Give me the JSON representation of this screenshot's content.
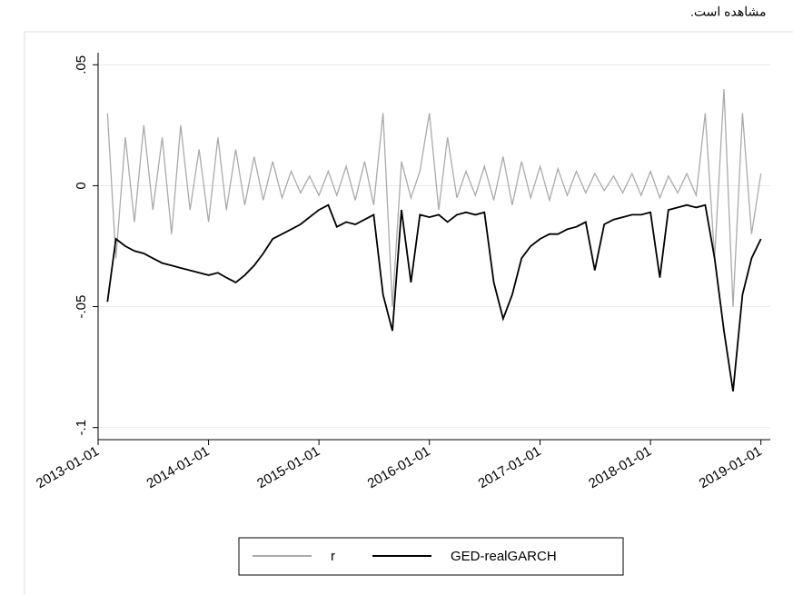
{
  "page_text": "مشاهده است.",
  "chart_data": {
    "type": "line",
    "x": [
      "2013-02-01",
      "2013-03-01",
      "2013-04-01",
      "2013-05-01",
      "2013-06-01",
      "2013-07-01",
      "2013-08-01",
      "2013-09-01",
      "2013-10-01",
      "2013-11-01",
      "2013-12-01",
      "2014-01-01",
      "2014-02-01",
      "2014-03-01",
      "2014-04-01",
      "2014-05-01",
      "2014-06-01",
      "2014-07-01",
      "2014-08-01",
      "2014-09-01",
      "2014-10-01",
      "2014-11-01",
      "2014-12-01",
      "2015-01-01",
      "2015-02-01",
      "2015-03-01",
      "2015-04-01",
      "2015-05-01",
      "2015-06-01",
      "2015-07-01",
      "2015-08-01",
      "2015-09-01",
      "2015-10-01",
      "2015-11-01",
      "2015-12-01",
      "2016-01-01",
      "2016-02-01",
      "2016-03-01",
      "2016-04-01",
      "2016-05-01",
      "2016-06-01",
      "2016-07-01",
      "2016-08-01",
      "2016-09-01",
      "2016-10-01",
      "2016-11-01",
      "2016-12-01",
      "2017-01-01",
      "2017-02-01",
      "2017-03-01",
      "2017-04-01",
      "2017-05-01",
      "2017-06-01",
      "2017-07-01",
      "2017-08-01",
      "2017-09-01",
      "2017-10-01",
      "2017-11-01",
      "2017-12-01",
      "2018-01-01",
      "2018-02-01",
      "2018-03-01",
      "2018-04-01",
      "2018-05-01",
      "2018-06-01",
      "2018-07-01",
      "2018-08-01",
      "2018-09-01",
      "2018-10-01",
      "2018-11-01",
      "2018-12-01",
      "2019-01-01"
    ],
    "series": [
      {
        "name": "r",
        "color": "#aaaaaa",
        "values": [
          0.03,
          -0.03,
          0.02,
          -0.015,
          0.025,
          -0.01,
          0.02,
          -0.02,
          0.025,
          -0.01,
          0.015,
          -0.015,
          0.02,
          -0.01,
          0.015,
          -0.008,
          0.012,
          -0.006,
          0.01,
          -0.005,
          0.006,
          -0.003,
          0.004,
          -0.004,
          0.006,
          -0.004,
          0.008,
          -0.006,
          0.01,
          -0.008,
          0.03,
          -0.05,
          0.01,
          -0.005,
          0.006,
          0.03,
          -0.01,
          0.02,
          -0.005,
          0.006,
          -0.004,
          0.008,
          -0.006,
          0.012,
          -0.008,
          0.01,
          -0.005,
          0.008,
          -0.006,
          0.007,
          -0.004,
          0.006,
          -0.003,
          0.005,
          -0.002,
          0.004,
          -0.003,
          0.005,
          -0.004,
          0.006,
          -0.005,
          0.004,
          -0.003,
          0.005,
          -0.004,
          0.03,
          -0.03,
          0.04,
          -0.05,
          0.03,
          -0.02,
          0.005
        ]
      },
      {
        "name": "GED-realGARCH",
        "color": "#000000",
        "values": [
          -0.048,
          -0.022,
          -0.025,
          -0.027,
          -0.028,
          -0.03,
          -0.032,
          -0.033,
          -0.034,
          -0.035,
          -0.036,
          -0.037,
          -0.036,
          -0.038,
          -0.04,
          -0.037,
          -0.033,
          -0.028,
          -0.022,
          -0.02,
          -0.018,
          -0.016,
          -0.013,
          -0.01,
          -0.008,
          -0.017,
          -0.015,
          -0.016,
          -0.014,
          -0.012,
          -0.045,
          -0.06,
          -0.01,
          -0.04,
          -0.012,
          -0.013,
          -0.012,
          -0.015,
          -0.012,
          -0.011,
          -0.012,
          -0.011,
          -0.04,
          -0.055,
          -0.045,
          -0.03,
          -0.025,
          -0.022,
          -0.02,
          -0.02,
          -0.018,
          -0.017,
          -0.015,
          -0.035,
          -0.016,
          -0.014,
          -0.013,
          -0.012,
          -0.012,
          -0.011,
          -0.038,
          -0.01,
          -0.009,
          -0.008,
          -0.009,
          -0.008,
          -0.03,
          -0.06,
          -0.085,
          -0.045,
          -0.03,
          -0.022
        ]
      }
    ],
    "xlim": [
      "2013-01-01",
      "2019-02-01"
    ],
    "xticks": [
      "2013-01-01",
      "2014-01-01",
      "2015-01-01",
      "2016-01-01",
      "2017-01-01",
      "2018-01-01",
      "2019-01-01"
    ],
    "ylim": [
      -0.105,
      0.055
    ],
    "yticks": [
      {
        "value": -0.1,
        "label": "-.1"
      },
      {
        "value": -0.05,
        "label": "-.05"
      },
      0,
      {
        "value": 0.05,
        "label": ".05"
      }
    ],
    "grid": true,
    "legend": "bottom"
  }
}
